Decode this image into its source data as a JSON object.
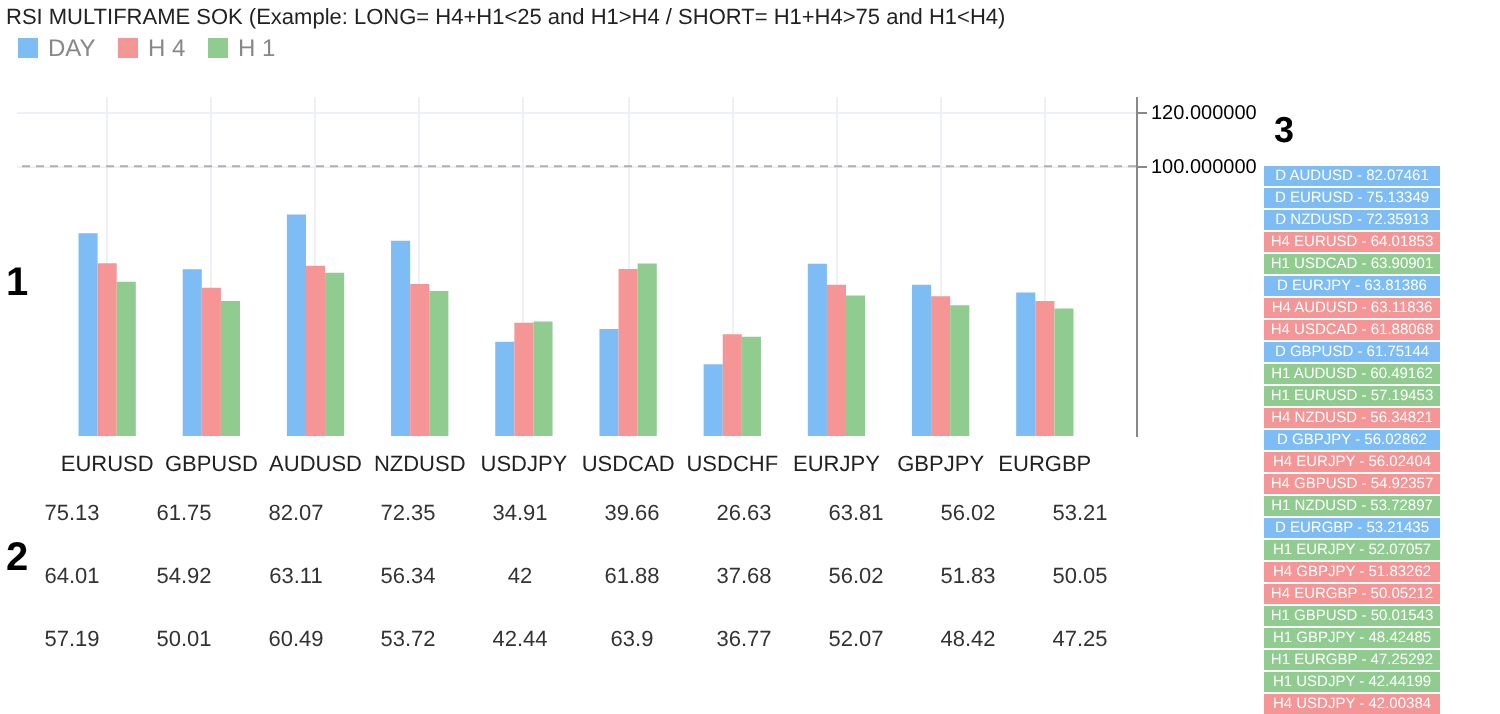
{
  "chart_data": {
    "type": "bar",
    "title": "RSI MULTIFRAME SOK (Example: LONG= H4+H1<25 and H1>H4 / SHORT= H1+H4>75 and H1<H4)",
    "categories": [
      "EURUSD",
      "GBPUSD",
      "AUDUSD",
      "NZDUSD",
      "USDJPY",
      "USDCAD",
      "USDCHF",
      "EURJPY",
      "GBPJPY",
      "EURGBP"
    ],
    "series": [
      {
        "name": "DAY",
        "color": "#7dbcf5",
        "values": [
          75.13,
          61.75,
          82.07,
          72.35,
          34.91,
          39.66,
          26.63,
          63.81,
          56.02,
          53.21
        ]
      },
      {
        "name": "H 4",
        "color": "#f59595",
        "values": [
          64.01,
          54.92,
          63.11,
          56.34,
          42,
          61.88,
          37.68,
          56.02,
          51.83,
          50.05
        ]
      },
      {
        "name": "H 1",
        "color": "#90cb90",
        "values": [
          57.19,
          50.01,
          60.49,
          53.72,
          42.44,
          63.9,
          36.77,
          52.07,
          48.42,
          47.25
        ]
      }
    ],
    "ylim": [
      0,
      126
    ],
    "yticks": [
      {
        "value": 100,
        "label": "100.000000"
      },
      {
        "value": 120,
        "label": "120.000000"
      }
    ],
    "ref_lines": [
      {
        "axis": "y",
        "value": 100,
        "label": null,
        "line_style": "dashed",
        "color": "#b0b0b0"
      }
    ],
    "data_labels": true,
    "grid": true,
    "legend": "top",
    "annotations": [
      "1",
      "2",
      "3",
      "D AUDUSD - 82.07461",
      "D EURUSD - 75.13349",
      "D NZDUSD - 72.35913",
      "H4 EURUSD - 64.01853",
      "H1 USDCAD - 63.90901",
      "D EURJPY - 63.81386",
      "H4 AUDUSD - 63.11836",
      "H4 USDCAD - 61.88068",
      "D GBPUSD - 61.75144",
      "H1 AUDUSD - 60.49162",
      "H1 EURUSD - 57.19453",
      "H4 NZDUSD - 56.34821",
      "D GBPJPY - 56.02862",
      "H4 EURJPY - 56.02404",
      "H4 GBPUSD - 54.92357",
      "H1 NZDUSD - 53.72897",
      "D EURGBP - 53.21435",
      "H1 EURJPY - 52.07057",
      "H4 GBPJPY - 51.83262",
      "H4 EURGBP - 50.05212",
      "H1 GBPUSD - 50.01543",
      "H1 GBPJPY - 48.42485",
      "H1 EURGBP - 47.25292",
      "H1 USDJPY - 42.44199",
      "H4 USDJPY - 42.00384"
    ]
  }
}
